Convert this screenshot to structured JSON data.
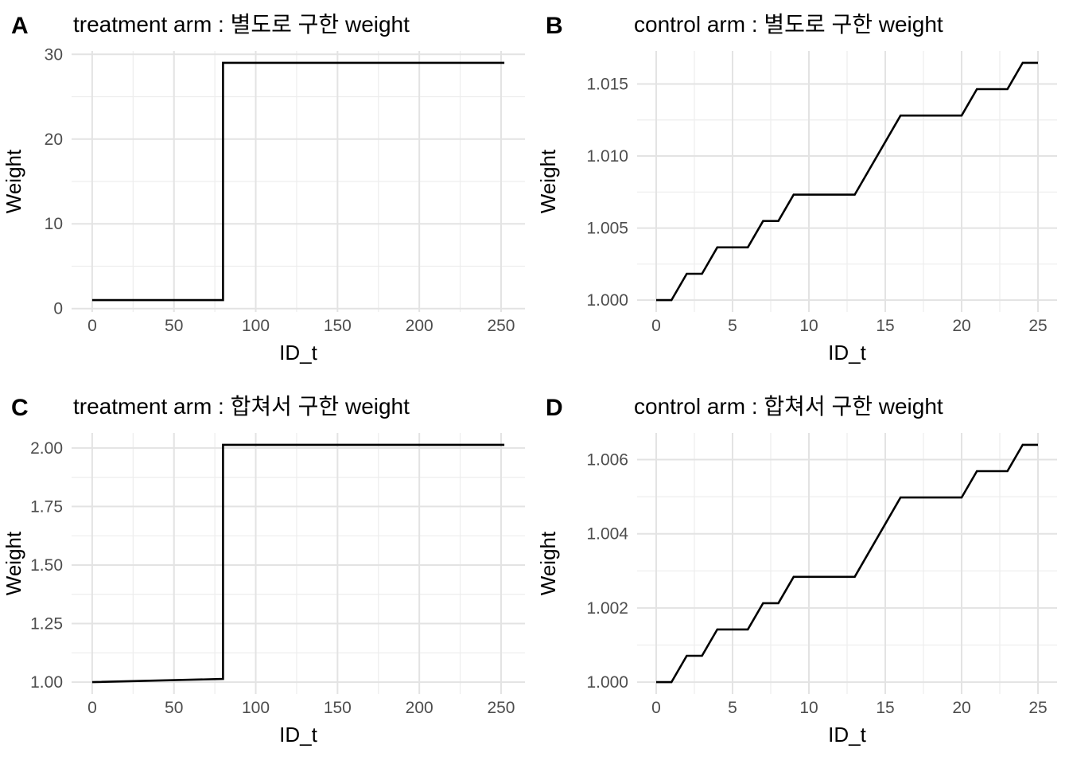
{
  "page": {
    "background": "#ffffff"
  },
  "styles": {
    "line_color": "#000000",
    "grid_major_color": "#E3E3E3",
    "grid_minor_color": "#EDEDED",
    "tick_label_color": "#4D4D4D",
    "text_color": "#000000"
  },
  "chart_data": [
    {
      "type": "line",
      "tag": "A",
      "title": "treatment arm : 별도로 구한 weight",
      "xlabel": "ID_t",
      "ylabel": "Weight",
      "xlim": [
        -12.6,
        264.6
      ],
      "ylim": [
        -0.4,
        30.4
      ],
      "x_ticks": [
        0,
        50,
        100,
        150,
        200,
        250
      ],
      "x_tick_labels": [
        "0",
        "50",
        "100",
        "150",
        "200",
        "250"
      ],
      "x_minor": [
        25,
        75,
        125,
        175,
        225
      ],
      "y_ticks": [
        0,
        10,
        20,
        30
      ],
      "y_tick_labels": [
        "0",
        "10",
        "20",
        "30"
      ],
      "y_minor": [
        5,
        15,
        25
      ],
      "grid": true,
      "legend": "none",
      "points": [
        [
          0,
          1
        ],
        [
          80,
          1
        ],
        [
          80,
          29
        ],
        [
          252,
          29
        ]
      ]
    },
    {
      "type": "line",
      "tag": "B",
      "title": "control arm : 별도로 구한 weight",
      "xlabel": "ID_t",
      "ylabel": "Weight",
      "xlim": [
        -1.25,
        26.25
      ],
      "ylim": [
        0.9991765,
        1.0172935
      ],
      "x_ticks": [
        0,
        5,
        10,
        15,
        20,
        25
      ],
      "x_tick_labels": [
        "0",
        "5",
        "10",
        "15",
        "20",
        "25"
      ],
      "x_minor": [
        2.5,
        7.5,
        12.5,
        17.5,
        22.5
      ],
      "y_ticks": [
        1.0,
        1.005,
        1.01,
        1.015
      ],
      "y_tick_labels": [
        "1.000",
        "1.005",
        "1.010",
        "1.015"
      ],
      "y_minor": [
        1.0025,
        1.0075,
        1.0125
      ],
      "grid": true,
      "legend": "none",
      "points": [
        [
          0,
          1.0
        ],
        [
          1,
          1.0
        ],
        [
          2,
          1.00183
        ],
        [
          3,
          1.00183
        ],
        [
          4,
          1.00366
        ],
        [
          6,
          1.00366
        ],
        [
          7,
          1.00549
        ],
        [
          8,
          1.00549
        ],
        [
          9,
          1.00732
        ],
        [
          13,
          1.00732
        ],
        [
          16,
          1.01281
        ],
        [
          20,
          1.01281
        ],
        [
          21,
          1.01464
        ],
        [
          23,
          1.01464
        ],
        [
          24,
          1.01647
        ],
        [
          25,
          1.01647
        ]
      ]
    },
    {
      "type": "line",
      "tag": "C",
      "title": "treatment arm : 합쳐서 구한 weight",
      "xlabel": "ID_t",
      "ylabel": "Weight",
      "xlim": [
        -12.6,
        264.6
      ],
      "ylim": [
        0.9493,
        2.0642
      ],
      "x_ticks": [
        0,
        50,
        100,
        150,
        200,
        250
      ],
      "x_tick_labels": [
        "0",
        "50",
        "100",
        "150",
        "200",
        "250"
      ],
      "x_minor": [
        25,
        75,
        125,
        175,
        225
      ],
      "y_ticks": [
        1.0,
        1.25,
        1.5,
        1.75,
        2.0
      ],
      "y_tick_labels": [
        "1.00",
        "1.25",
        "1.50",
        "1.75",
        "2.00"
      ],
      "y_minor": [
        1.125,
        1.375,
        1.625,
        1.875
      ],
      "grid": true,
      "legend": "none",
      "points": [
        [
          0,
          1.0
        ],
        [
          80,
          1.0135
        ],
        [
          80,
          2.0135
        ],
        [
          252,
          2.0135
        ]
      ]
    },
    {
      "type": "line",
      "tag": "D",
      "title": "control arm : 합쳐서 구한 weight",
      "xlabel": "ID_t",
      "ylabel": "Weight",
      "xlim": [
        -1.25,
        26.25
      ],
      "ylim": [
        0.99968,
        1.00672
      ],
      "x_ticks": [
        0,
        5,
        10,
        15,
        20,
        25
      ],
      "x_tick_labels": [
        "0",
        "5",
        "10",
        "15",
        "20",
        "25"
      ],
      "x_minor": [
        2.5,
        7.5,
        12.5,
        17.5,
        22.5
      ],
      "y_ticks": [
        1.0,
        1.002,
        1.004,
        1.006
      ],
      "y_tick_labels": [
        "1.000",
        "1.002",
        "1.004",
        "1.006"
      ],
      "y_minor": [
        1.001,
        1.003,
        1.005
      ],
      "grid": true,
      "legend": "none",
      "points": [
        [
          0,
          1.0
        ],
        [
          1,
          1.0
        ],
        [
          2,
          1.00071
        ],
        [
          3,
          1.00071
        ],
        [
          4,
          1.00142
        ],
        [
          6,
          1.00142
        ],
        [
          7,
          1.00213
        ],
        [
          8,
          1.00213
        ],
        [
          9,
          1.00284
        ],
        [
          13,
          1.00284
        ],
        [
          16,
          1.00498
        ],
        [
          20,
          1.00498
        ],
        [
          21,
          1.00569
        ],
        [
          23,
          1.00569
        ],
        [
          24,
          1.0064
        ],
        [
          25,
          1.0064
        ]
      ]
    }
  ]
}
